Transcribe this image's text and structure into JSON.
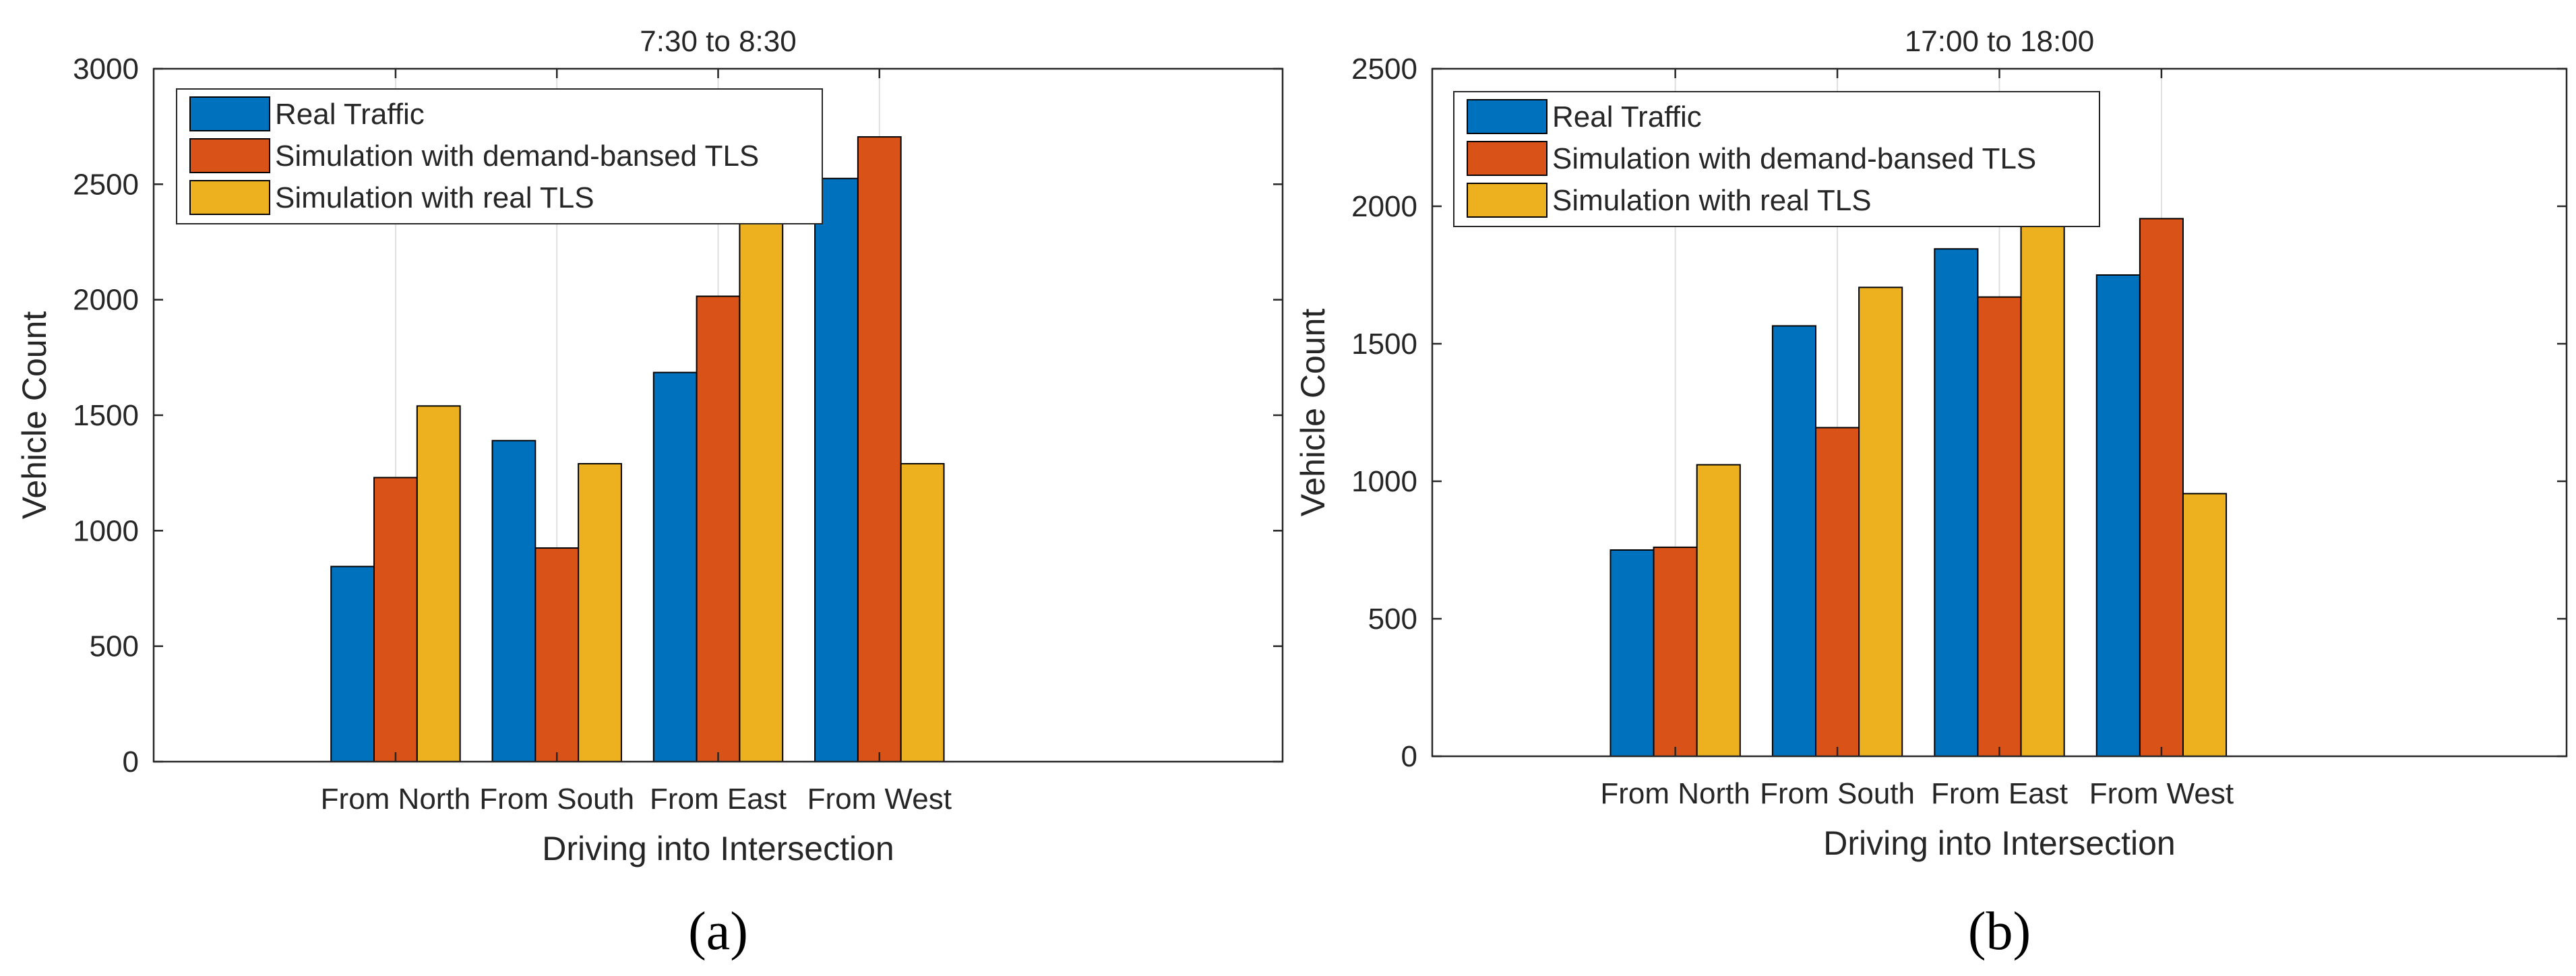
{
  "colors": {
    "real": "#0072BD",
    "demand": "#D95319",
    "realtls": "#EDB120",
    "axis": "#262626",
    "grid": "#DFDFDF"
  },
  "chart_data": [
    {
      "type": "bar",
      "title": "7:30 to 8:30",
      "xlabel": "Driving into Intersection",
      "ylabel": "Vehicle Count",
      "ylim": [
        0,
        3000
      ],
      "yticks": [
        "0",
        "500",
        "1000",
        "1500",
        "2000",
        "2500",
        "3000"
      ],
      "categories": [
        "From North",
        "From South",
        "From East",
        "From West"
      ],
      "legend_position": "top-left",
      "series": [
        {
          "name": "Real Traffic",
          "color_key": "real",
          "values": [
            845,
            1390,
            1685,
            2525
          ]
        },
        {
          "name": "Simulation with demand-bansed TLS",
          "color_key": "demand",
          "values": [
            1230,
            925,
            2015,
            2705
          ]
        },
        {
          "name": "Simulation with real TLS",
          "color_key": "realtls",
          "values": [
            1540,
            1290,
            2555,
            1290
          ]
        }
      ],
      "caption": "(a)"
    },
    {
      "type": "bar",
      "title": "17:00 to 18:00",
      "xlabel": "Driving into Intersection",
      "ylabel": "Vehicle Count",
      "ylim": [
        0,
        2500
      ],
      "yticks": [
        "0",
        "500",
        "1000",
        "1500",
        "2000",
        "2500"
      ],
      "categories": [
        "From North",
        "From South",
        "From East",
        "From West"
      ],
      "legend_position": "top-left",
      "series": [
        {
          "name": "Real Traffic",
          "color_key": "real",
          "values": [
            750,
            1565,
            1845,
            1750
          ]
        },
        {
          "name": "Simulation with demand-bansed TLS",
          "color_key": "demand",
          "values": [
            760,
            1195,
            1670,
            1955
          ]
        },
        {
          "name": "Simulation with real TLS",
          "color_key": "realtls",
          "values": [
            1060,
            1705,
            2120,
            955
          ]
        }
      ],
      "caption": "(b)"
    }
  ]
}
